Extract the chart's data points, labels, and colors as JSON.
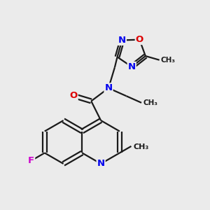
{
  "background_color": "#ebebeb",
  "bond_color": "#1a1a1a",
  "atom_colors": {
    "N": "#0000ee",
    "O": "#dd0000",
    "F": "#cc00cc",
    "C": "#1a1a1a"
  },
  "figsize": [
    3.0,
    3.0
  ],
  "dpi": 100,
  "xlim": [
    0,
    10
  ],
  "ylim": [
    0,
    10
  ]
}
